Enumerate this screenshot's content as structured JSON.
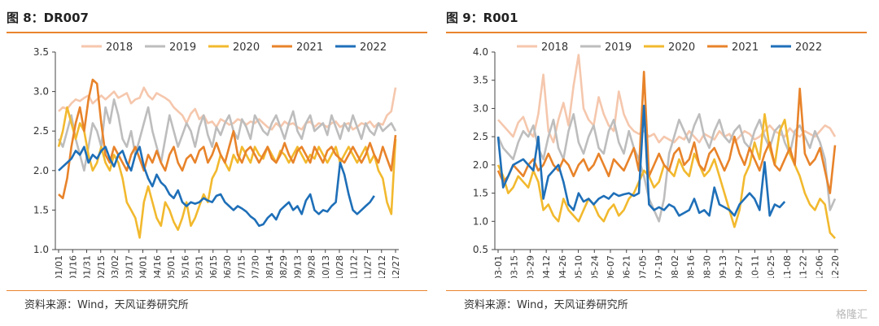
{
  "chart_data": [
    {
      "type": "line",
      "title": "图 8：DR007",
      "ylim": [
        1.0,
        3.5
      ],
      "yticks": [
        "1.0",
        "1.5",
        "2.0",
        "2.5",
        "3.0",
        "3.5"
      ],
      "xticks": [
        "01/01",
        "01/16",
        "01/31",
        "02/15",
        "03/02",
        "03/17",
        "04/01",
        "04/16",
        "05/01",
        "05/16",
        "05/31",
        "06/15",
        "06/30",
        "07/15",
        "07/30",
        "08/14",
        "08/29",
        "09/13",
        "09/28",
        "10/13",
        "10/28",
        "11/12",
        "11/27",
        "12/12",
        "12/27"
      ],
      "series": [
        {
          "name": "2018",
          "color": "#F5C7AD",
          "values": [
            2.75,
            2.8,
            2.78,
            2.85,
            2.9,
            2.88,
            2.92,
            2.95,
            2.85,
            2.9,
            2.95,
            2.9,
            2.95,
            3.0,
            2.92,
            2.95,
            2.98,
            2.85,
            2.9,
            2.92,
            3.05,
            2.95,
            2.9,
            2.98,
            2.95,
            2.92,
            2.88,
            2.8,
            2.75,
            2.7,
            2.6,
            2.72,
            2.78,
            2.65,
            2.7,
            2.6,
            2.62,
            2.55,
            2.65,
            2.62,
            2.58,
            2.6,
            2.65,
            2.63,
            2.58,
            2.62,
            2.6,
            2.65,
            2.6,
            2.55,
            2.52,
            2.6,
            2.55,
            2.62,
            2.58,
            2.6,
            2.55,
            2.52,
            2.6,
            2.62,
            2.55,
            2.6,
            2.58,
            2.55,
            2.6,
            2.62,
            2.55,
            2.58,
            2.6,
            2.52,
            2.55,
            2.6,
            2.58,
            2.62,
            2.55,
            2.6,
            2.58,
            2.7,
            2.75,
            3.05
          ]
        },
        {
          "name": "2019",
          "color": "#BDBDBD",
          "values": [
            2.4,
            2.3,
            2.5,
            2.7,
            2.4,
            2.2,
            2.0,
            2.3,
            2.6,
            2.5,
            2.3,
            2.8,
            2.6,
            2.9,
            2.7,
            2.4,
            2.3,
            2.5,
            2.2,
            2.4,
            2.6,
            2.8,
            2.5,
            2.3,
            2.1,
            2.4,
            2.7,
            2.5,
            2.3,
            2.45,
            2.6,
            2.5,
            2.3,
            2.55,
            2.7,
            2.45,
            2.3,
            2.55,
            2.45,
            2.6,
            2.7,
            2.5,
            2.4,
            2.65,
            2.55,
            2.4,
            2.7,
            2.6,
            2.5,
            2.45,
            2.6,
            2.7,
            2.55,
            2.4,
            2.6,
            2.75,
            2.5,
            2.4,
            2.6,
            2.7,
            2.5,
            2.55,
            2.6,
            2.45,
            2.7,
            2.55,
            2.4,
            2.6,
            2.5,
            2.7,
            2.55,
            2.4,
            2.6,
            2.5,
            2.45,
            2.6,
            2.5,
            2.55,
            2.6,
            2.5
          ]
        },
        {
          "name": "2020",
          "color": "#F2B92E",
          "values": [
            2.3,
            2.5,
            2.8,
            2.6,
            2.4,
            2.6,
            2.5,
            2.2,
            2.0,
            2.1,
            2.3,
            2.1,
            2.0,
            2.2,
            2.1,
            1.9,
            1.6,
            1.5,
            1.4,
            1.15,
            1.6,
            1.8,
            1.6,
            1.4,
            1.3,
            1.6,
            1.5,
            1.35,
            1.25,
            1.4,
            1.6,
            1.3,
            1.4,
            1.55,
            1.7,
            1.6,
            1.9,
            2.0,
            2.2,
            2.1,
            2.0,
            2.2,
            2.1,
            2.3,
            2.2,
            2.1,
            2.3,
            2.2,
            2.15,
            2.3,
            2.2,
            2.1,
            2.25,
            2.2,
            2.1,
            2.2,
            2.3,
            2.2,
            2.1,
            2.2,
            2.15,
            2.3,
            2.2,
            2.1,
            2.2,
            2.3,
            2.1,
            2.2,
            2.3,
            2.2,
            2.1,
            2.2,
            2.3,
            2.1,
            2.2,
            2.0,
            1.9,
            1.6,
            1.45,
            2.4
          ]
        },
        {
          "name": "2021",
          "color": "#E8832A",
          "values": [
            1.7,
            1.65,
            1.9,
            2.3,
            2.6,
            2.8,
            2.5,
            2.9,
            3.15,
            3.1,
            2.6,
            2.2,
            2.1,
            2.3,
            2.2,
            2.1,
            2.0,
            2.2,
            2.3,
            2.15,
            2.0,
            2.2,
            2.1,
            2.25,
            2.1,
            2.0,
            2.2,
            2.3,
            2.1,
            2.0,
            2.15,
            2.2,
            2.1,
            2.25,
            2.3,
            2.1,
            2.2,
            2.35,
            2.2,
            2.1,
            2.3,
            2.5,
            2.2,
            2.1,
            2.25,
            2.3,
            2.2,
            2.1,
            2.2,
            2.3,
            2.15,
            2.1,
            2.2,
            2.35,
            2.2,
            2.1,
            2.25,
            2.3,
            2.2,
            2.1,
            2.3,
            2.2,
            2.1,
            2.25,
            2.3,
            2.2,
            2.15,
            2.1,
            2.2,
            2.3,
            2.2,
            2.1,
            2.2,
            2.35,
            2.2,
            2.1,
            2.3,
            2.15,
            2.0,
            2.45
          ]
        },
        {
          "name": "2022",
          "color": "#1E6FB8",
          "values": [
            2.0,
            2.05,
            2.1,
            2.15,
            2.25,
            2.2,
            2.3,
            2.1,
            2.2,
            2.15,
            2.25,
            2.3,
            2.15,
            2.05,
            2.2,
            2.25,
            2.1,
            2.0,
            2.2,
            2.3,
            2.05,
            1.9,
            1.8,
            1.95,
            1.85,
            1.8,
            1.7,
            1.65,
            1.75,
            1.6,
            1.55,
            1.6,
            1.58,
            1.6,
            1.65,
            1.62,
            1.6,
            1.68,
            1.7,
            1.6,
            1.55,
            1.5,
            1.55,
            1.52,
            1.48,
            1.42,
            1.38,
            1.3,
            1.32,
            1.4,
            1.45,
            1.38,
            1.5,
            1.55,
            1.6,
            1.5,
            1.55,
            1.45,
            1.62,
            1.7,
            1.5,
            1.45,
            1.5,
            1.48,
            1.55,
            1.6,
            2.1,
            1.95,
            1.7,
            1.5,
            1.45,
            1.5,
            1.55,
            1.6,
            1.68,
            null,
            null,
            null,
            null,
            null
          ]
        }
      ]
    },
    {
      "type": "line",
      "title": "图 9：R001",
      "ylim": [
        0.5,
        4.0
      ],
      "yticks": [
        "0.5",
        "1.0",
        "1.5",
        "2.0",
        "2.5",
        "3.0",
        "3.5",
        "4.0"
      ],
      "xticks": [
        "03-01",
        "03-15",
        "03-29",
        "04-12",
        "04-26",
        "05-10",
        "05-24",
        "06-07",
        "06-21",
        "07-05",
        "07-19",
        "08-02",
        "08-16",
        "08-30",
        "09-13",
        "09-27",
        "10-11",
        "10-25",
        "11-08",
        "11-22",
        "12-06",
        "12-20"
      ],
      "series": [
        {
          "name": "2018",
          "color": "#F5C7AD",
          "values": [
            2.8,
            2.7,
            2.6,
            2.5,
            2.75,
            2.85,
            2.6,
            2.5,
            2.9,
            3.6,
            2.6,
            2.4,
            2.8,
            3.1,
            2.7,
            3.4,
            3.95,
            3.0,
            2.8,
            2.7,
            3.2,
            2.9,
            2.7,
            2.6,
            3.3,
            2.9,
            2.7,
            2.6,
            2.55,
            2.6,
            2.5,
            2.55,
            2.4,
            2.5,
            2.45,
            2.4,
            2.5,
            2.45,
            2.6,
            2.5,
            2.4,
            2.55,
            2.5,
            2.45,
            2.6,
            2.5,
            2.55,
            2.4,
            2.5,
            2.6,
            2.55,
            2.45,
            2.5,
            2.6,
            2.7,
            2.6,
            2.55,
            2.5,
            2.65,
            2.55,
            2.5,
            2.6,
            2.55,
            2.5,
            2.6,
            2.7,
            2.65,
            2.5
          ]
        },
        {
          "name": "2019",
          "color": "#BDBDBD",
          "values": [
            2.5,
            2.3,
            2.2,
            2.1,
            2.4,
            2.6,
            2.5,
            2.7,
            2.3,
            2.1,
            2.5,
            2.8,
            2.3,
            2.1,
            2.6,
            2.9,
            2.4,
            2.2,
            2.5,
            2.7,
            2.3,
            2.2,
            2.6,
            2.8,
            2.4,
            2.2,
            2.6,
            2.3,
            2.1,
            1.8,
            1.4,
            1.2,
            1.0,
            1.4,
            2.2,
            2.5,
            2.8,
            2.6,
            2.4,
            2.7,
            2.9,
            2.5,
            2.3,
            2.6,
            2.8,
            2.5,
            2.4,
            2.6,
            2.7,
            2.4,
            2.3,
            2.6,
            2.8,
            2.5,
            2.3,
            2.6,
            2.7,
            2.4,
            2.2,
            2.6,
            2.7,
            2.5,
            2.3,
            2.6,
            2.4,
            2.1,
            1.2,
            1.4
          ]
        },
        {
          "name": "2020",
          "color": "#F2B92E",
          "values": [
            2.0,
            1.8,
            1.5,
            1.6,
            1.8,
            1.7,
            1.6,
            1.9,
            1.7,
            1.2,
            1.3,
            1.1,
            1.0,
            1.4,
            1.2,
            1.1,
            1.0,
            1.2,
            1.4,
            1.3,
            1.1,
            1.0,
            1.2,
            1.3,
            1.1,
            1.2,
            1.4,
            1.5,
            1.7,
            1.9,
            1.8,
            1.6,
            1.7,
            2.0,
            1.9,
            1.8,
            2.1,
            1.9,
            1.8,
            2.2,
            2.0,
            1.8,
            1.9,
            2.1,
            1.8,
            1.5,
            1.2,
            0.9,
            1.2,
            1.8,
            2.0,
            2.4,
            2.1,
            2.9,
            2.3,
            2.0,
            2.6,
            2.8,
            2.2,
            2.0,
            1.8,
            1.5,
            1.3,
            1.2,
            1.4,
            1.3,
            0.8,
            0.7
          ]
        },
        {
          "name": "2021",
          "color": "#E8832A",
          "values": [
            1.9,
            1.7,
            1.8,
            2.0,
            1.9,
            1.8,
            2.0,
            2.1,
            1.9,
            2.0,
            2.2,
            2.0,
            1.9,
            2.1,
            2.0,
            1.8,
            2.0,
            2.1,
            1.9,
            2.0,
            2.2,
            2.0,
            1.8,
            2.1,
            2.0,
            1.9,
            2.1,
            2.3,
            1.9,
            3.65,
            1.8,
            2.0,
            2.2,
            2.0,
            1.9,
            2.2,
            2.3,
            2.0,
            2.1,
            2.4,
            2.0,
            1.9,
            2.2,
            2.3,
            2.1,
            1.9,
            2.1,
            2.5,
            2.2,
            2.0,
            2.3,
            2.1,
            1.9,
            2.2,
            2.4,
            2.0,
            1.9,
            2.1,
            2.3,
            2.0,
            3.35,
            2.2,
            2.0,
            2.1,
            2.3,
            1.9,
            1.5,
            2.35
          ]
        },
        {
          "name": "2022",
          "color": "#1E6FB8",
          "values": [
            2.5,
            1.6,
            1.8,
            2.0,
            2.05,
            2.1,
            2.0,
            1.9,
            2.5,
            1.4,
            1.8,
            1.9,
            2.0,
            1.7,
            1.3,
            1.2,
            1.5,
            1.35,
            1.4,
            1.3,
            1.4,
            1.45,
            1.4,
            1.5,
            1.45,
            1.48,
            1.5,
            1.45,
            1.5,
            3.05,
            1.3,
            1.2,
            1.25,
            1.2,
            1.3,
            1.25,
            1.1,
            1.15,
            1.2,
            1.4,
            1.15,
            1.2,
            1.1,
            1.6,
            1.3,
            1.25,
            1.2,
            1.1,
            1.3,
            1.4,
            1.5,
            1.4,
            1.2,
            2.05,
            1.1,
            1.3,
            1.25,
            1.35,
            null,
            null,
            null,
            null,
            null,
            null,
            null,
            null,
            null,
            null
          ]
        }
      ]
    }
  ],
  "panels": {
    "left": {
      "title": "图 8：DR007",
      "source": "资料来源：Wind，天风证券研究所"
    },
    "right": {
      "title": "图 9：R001",
      "source": "资料来源：Wind，天风证券研究所"
    }
  },
  "watermark": "格隆汇"
}
